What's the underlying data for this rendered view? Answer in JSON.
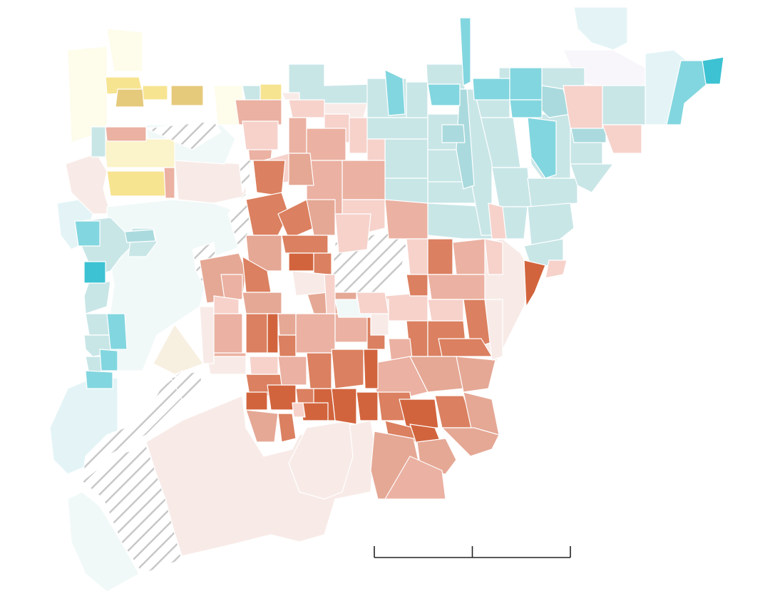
{
  "map": {
    "type": "choropleth",
    "legend": "none",
    "scale_bar": {
      "segments": 2,
      "labels": []
    },
    "colors": {
      "red_1": "#f8ebe7",
      "red_2": "#f6d2cb",
      "red_3": "#ebb1a2",
      "red_4": "#e5a895",
      "red_5": "#db8060",
      "red_6": "#d2643d",
      "blue_1": "#f1f8f8",
      "blue_2": "#e4f4f6",
      "blue_3": "#c9e6e7",
      "blue_4": "#aadadd",
      "blue_5": "#82d6df",
      "blue_6": "#3cc2d2",
      "yellow_1": "#fefcea",
      "yellow_2": "#fbf3c9",
      "yellow_3": "#f7e491",
      "yellow_4": "#e6ca7c",
      "tan": "#f7efe0",
      "lavender": "#f8f6fa",
      "nodata_stripe": "#c8c8c8",
      "outline": "#ffffff"
    }
  }
}
